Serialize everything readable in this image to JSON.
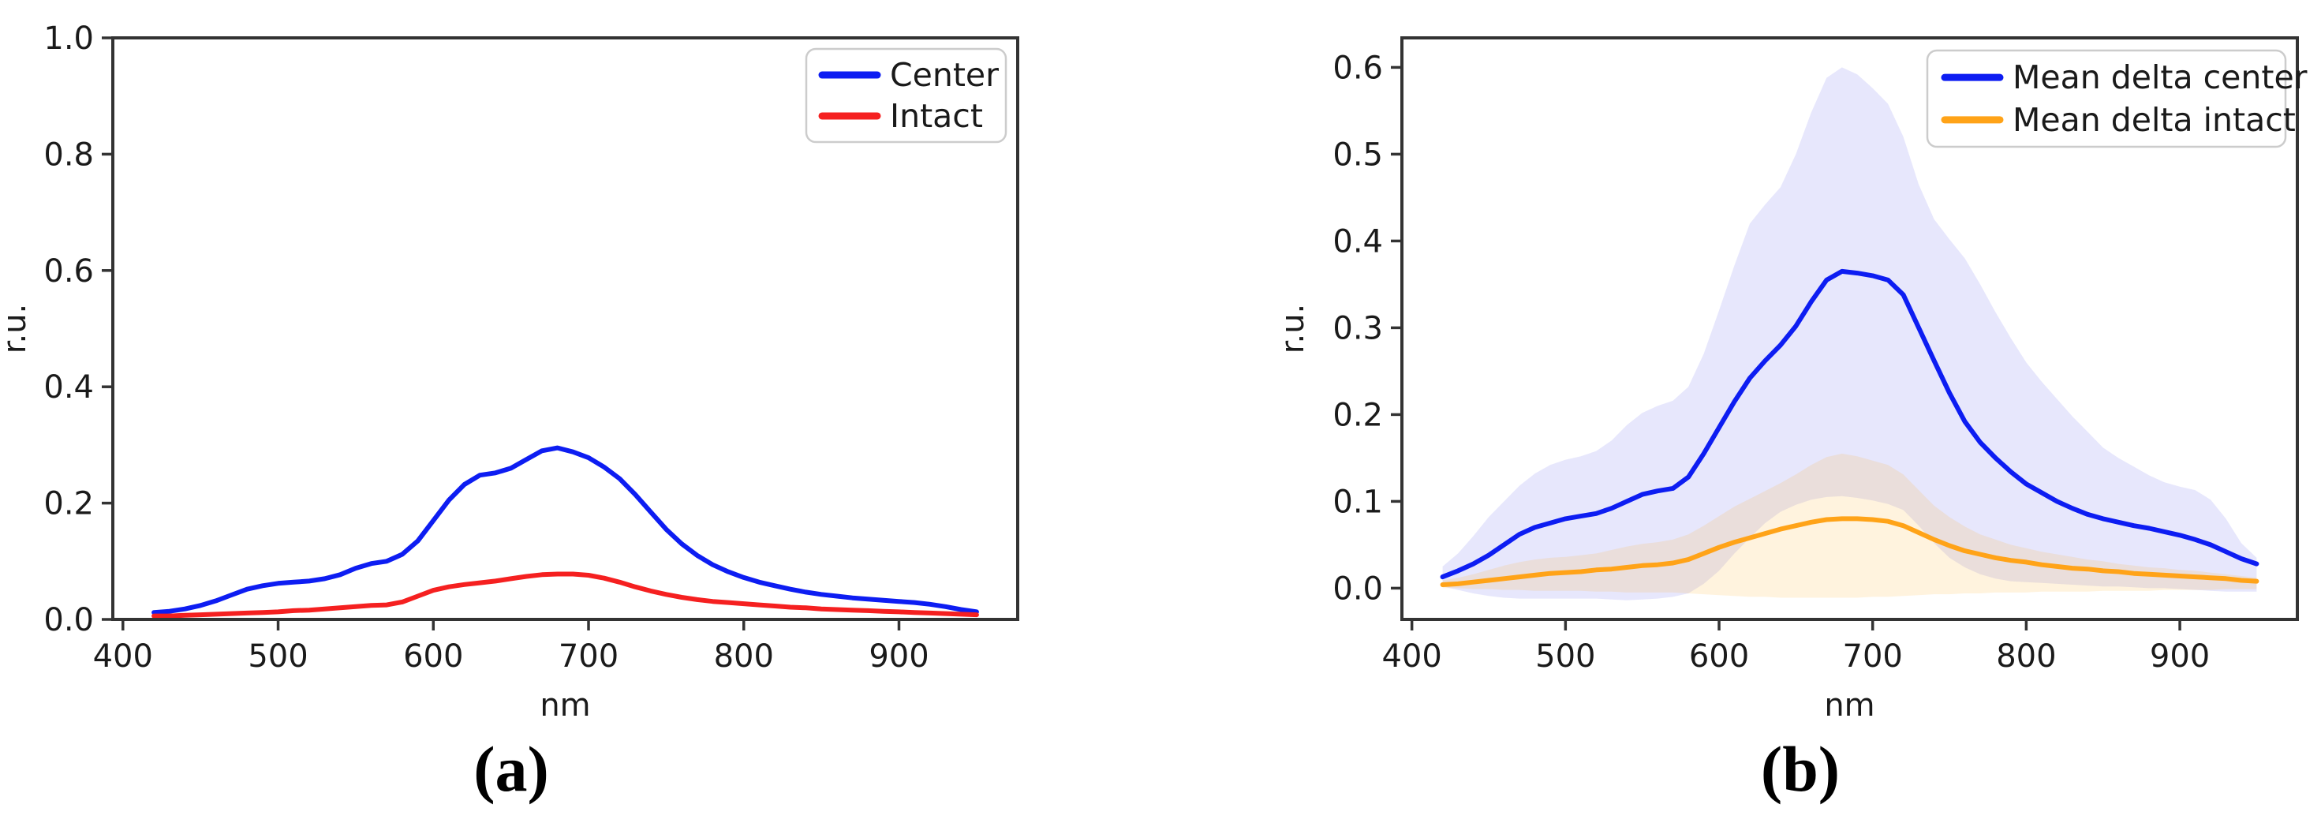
{
  "figure": {
    "background": "#ffffff",
    "spine_color": "#333333",
    "tick_color": "#262626",
    "text_color": "#1a1a1a"
  },
  "captions": {
    "a": "(a)",
    "b": "(b)"
  },
  "chart_data": [
    {
      "id": "a",
      "type": "line",
      "caption": "(a)",
      "xlabel": "nm",
      "ylabel": "r.u.",
      "xlim": [
        393.5,
        976.5
      ],
      "ylim": [
        0.0,
        1.0
      ],
      "xticks": [
        400,
        500,
        600,
        700,
        800,
        900
      ],
      "yticks": [
        0.0,
        0.2,
        0.4,
        0.6,
        0.8,
        1.0
      ],
      "ytick_decimals": 1,
      "grid": false,
      "legend_position": "upper-right",
      "x": [
        420,
        430,
        440,
        450,
        460,
        470,
        480,
        490,
        500,
        510,
        520,
        530,
        540,
        550,
        560,
        570,
        580,
        590,
        600,
        610,
        620,
        630,
        640,
        650,
        660,
        670,
        680,
        690,
        700,
        710,
        720,
        730,
        740,
        750,
        760,
        770,
        780,
        790,
        800,
        810,
        820,
        830,
        840,
        850,
        860,
        870,
        880,
        890,
        900,
        910,
        920,
        930,
        940,
        950
      ],
      "series": [
        {
          "name": "Center",
          "color": "#0d1df2",
          "values": [
            0.012,
            0.014,
            0.018,
            0.024,
            0.032,
            0.042,
            0.052,
            0.058,
            0.062,
            0.064,
            0.066,
            0.07,
            0.077,
            0.088,
            0.096,
            0.1,
            0.112,
            0.135,
            0.17,
            0.205,
            0.232,
            0.248,
            0.252,
            0.26,
            0.275,
            0.29,
            0.295,
            0.288,
            0.278,
            0.262,
            0.242,
            0.215,
            0.185,
            0.155,
            0.13,
            0.11,
            0.094,
            0.082,
            0.072,
            0.064,
            0.058,
            0.052,
            0.047,
            0.043,
            0.04,
            0.037,
            0.035,
            0.033,
            0.031,
            0.029,
            0.026,
            0.022,
            0.017,
            0.013
          ]
        },
        {
          "name": "Intact",
          "color": "#f52020",
          "values": [
            0.006,
            0.006,
            0.007,
            0.008,
            0.009,
            0.01,
            0.011,
            0.012,
            0.013,
            0.015,
            0.016,
            0.018,
            0.02,
            0.022,
            0.024,
            0.025,
            0.03,
            0.04,
            0.05,
            0.056,
            0.06,
            0.063,
            0.066,
            0.07,
            0.074,
            0.077,
            0.078,
            0.078,
            0.076,
            0.071,
            0.064,
            0.056,
            0.049,
            0.043,
            0.038,
            0.034,
            0.031,
            0.029,
            0.027,
            0.025,
            0.023,
            0.021,
            0.02,
            0.018,
            0.017,
            0.016,
            0.015,
            0.014,
            0.013,
            0.012,
            0.011,
            0.01,
            0.009,
            0.008
          ]
        }
      ]
    },
    {
      "id": "b",
      "type": "line",
      "caption": "(b)",
      "xlabel": "nm",
      "ylabel": "r.u.",
      "xlim": [
        393.5,
        976.5
      ],
      "ylim": [
        -0.036,
        0.634
      ],
      "xticks": [
        400,
        500,
        600,
        700,
        800,
        900
      ],
      "yticks": [
        0.0,
        0.1,
        0.2,
        0.3,
        0.4,
        0.5,
        0.6
      ],
      "ytick_decimals": 1,
      "grid": false,
      "legend_position": "upper-right",
      "x": [
        420,
        430,
        440,
        450,
        460,
        470,
        480,
        490,
        500,
        510,
        520,
        530,
        540,
        550,
        560,
        570,
        580,
        590,
        600,
        610,
        620,
        630,
        640,
        650,
        660,
        670,
        680,
        690,
        700,
        710,
        720,
        730,
        740,
        750,
        760,
        770,
        780,
        790,
        800,
        810,
        820,
        830,
        840,
        850,
        860,
        870,
        880,
        890,
        900,
        910,
        920,
        930,
        940,
        950
      ],
      "series": [
        {
          "name": "Mean delta center",
          "color": "#0d1df2",
          "band_color": "#4646eb",
          "band_alpha": 0.13,
          "values": [
            0.013,
            0.02,
            0.028,
            0.038,
            0.05,
            0.062,
            0.07,
            0.075,
            0.08,
            0.083,
            0.086,
            0.092,
            0.1,
            0.108,
            0.112,
            0.115,
            0.128,
            0.155,
            0.185,
            0.215,
            0.242,
            0.262,
            0.28,
            0.302,
            0.33,
            0.355,
            0.365,
            0.363,
            0.36,
            0.355,
            0.338,
            0.3,
            0.262,
            0.225,
            0.192,
            0.168,
            0.15,
            0.134,
            0.12,
            0.11,
            0.1,
            0.092,
            0.085,
            0.08,
            0.076,
            0.072,
            0.069,
            0.065,
            0.061,
            0.056,
            0.05,
            0.042,
            0.034,
            0.028
          ],
          "band_upper": [
            0.025,
            0.04,
            0.06,
            0.082,
            0.1,
            0.118,
            0.132,
            0.142,
            0.148,
            0.152,
            0.158,
            0.17,
            0.188,
            0.202,
            0.21,
            0.216,
            0.232,
            0.27,
            0.32,
            0.372,
            0.42,
            0.442,
            0.462,
            0.5,
            0.548,
            0.588,
            0.6,
            0.592,
            0.576,
            0.558,
            0.52,
            0.465,
            0.425,
            0.402,
            0.38,
            0.35,
            0.318,
            0.288,
            0.26,
            0.238,
            0.218,
            0.198,
            0.18,
            0.162,
            0.15,
            0.14,
            0.13,
            0.122,
            0.117,
            0.113,
            0.102,
            0.08,
            0.052,
            0.035
          ],
          "band_lower": [
            0.002,
            -0.002,
            -0.006,
            -0.009,
            -0.011,
            -0.012,
            -0.012,
            -0.012,
            -0.012,
            -0.012,
            -0.012,
            -0.013,
            -0.014,
            -0.013,
            -0.012,
            -0.01,
            -0.006,
            0.005,
            0.02,
            0.04,
            0.058,
            0.075,
            0.088,
            0.096,
            0.102,
            0.105,
            0.106,
            0.104,
            0.101,
            0.097,
            0.09,
            0.072,
            0.052,
            0.035,
            0.024,
            0.016,
            0.011,
            0.008,
            0.007,
            0.006,
            0.005,
            0.004,
            0.003,
            0.002,
            0.002,
            0.001,
            0.0,
            0.0,
            -0.001,
            -0.002,
            -0.003,
            -0.004,
            -0.004,
            -0.004
          ]
        },
        {
          "name": "Mean delta intact",
          "color": "#ffa318",
          "band_color": "#ffa500",
          "band_alpha": 0.13,
          "values": [
            0.004,
            0.005,
            0.007,
            0.009,
            0.011,
            0.013,
            0.015,
            0.017,
            0.018,
            0.019,
            0.021,
            0.022,
            0.024,
            0.026,
            0.027,
            0.029,
            0.033,
            0.04,
            0.047,
            0.053,
            0.058,
            0.063,
            0.068,
            0.072,
            0.076,
            0.079,
            0.08,
            0.08,
            0.079,
            0.077,
            0.072,
            0.064,
            0.056,
            0.049,
            0.043,
            0.039,
            0.035,
            0.032,
            0.03,
            0.027,
            0.025,
            0.023,
            0.022,
            0.02,
            0.019,
            0.017,
            0.016,
            0.015,
            0.014,
            0.013,
            0.012,
            0.011,
            0.009,
            0.008
          ],
          "band_upper": [
            0.009,
            0.012,
            0.016,
            0.021,
            0.026,
            0.03,
            0.033,
            0.035,
            0.036,
            0.038,
            0.04,
            0.044,
            0.048,
            0.051,
            0.053,
            0.056,
            0.062,
            0.072,
            0.083,
            0.094,
            0.103,
            0.112,
            0.121,
            0.131,
            0.142,
            0.151,
            0.155,
            0.152,
            0.147,
            0.142,
            0.131,
            0.113,
            0.095,
            0.082,
            0.071,
            0.062,
            0.056,
            0.05,
            0.046,
            0.042,
            0.039,
            0.036,
            0.033,
            0.031,
            0.028,
            0.026,
            0.024,
            0.023,
            0.021,
            0.02,
            0.018,
            0.016,
            0.014,
            0.012
          ],
          "band_lower": [
            0.0,
            0.0,
            -0.001,
            -0.001,
            -0.002,
            -0.002,
            -0.003,
            -0.003,
            -0.003,
            -0.003,
            -0.004,
            -0.004,
            -0.005,
            -0.005,
            -0.005,
            -0.005,
            -0.006,
            -0.007,
            -0.008,
            -0.009,
            -0.01,
            -0.01,
            -0.011,
            -0.011,
            -0.011,
            -0.011,
            -0.011,
            -0.011,
            -0.01,
            -0.01,
            -0.009,
            -0.008,
            -0.007,
            -0.007,
            -0.006,
            -0.006,
            -0.005,
            -0.005,
            -0.005,
            -0.004,
            -0.004,
            -0.004,
            -0.004,
            -0.003,
            -0.003,
            -0.003,
            -0.003,
            -0.002,
            -0.002,
            -0.002,
            -0.002,
            -0.001,
            -0.001,
            -0.001
          ]
        }
      ]
    }
  ]
}
